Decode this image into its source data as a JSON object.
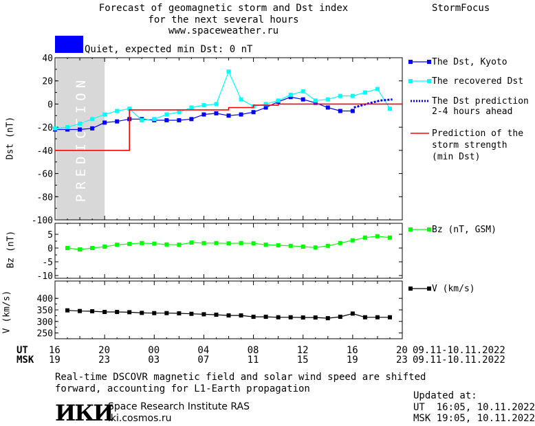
{
  "header": {
    "title_lines": [
      "Forecast of geomagnetic storm and Dst index",
      "for the next several hours",
      "www.spaceweather.ru"
    ],
    "brand": "StormFocus",
    "status_text": "Quiet, expected min Dst: 0 nT",
    "status_color": "#0000ff"
  },
  "legend": {
    "dst_kyoto": "The Dst, Kyoto",
    "dst_recovered": "The recovered Dst",
    "dst_prediction": [
      "The Dst prediction",
      "2-4 hours ahead"
    ],
    "storm_prediction": [
      "Prediction of the",
      "storm strength",
      "(min Dst)"
    ],
    "bz": "Bz (nT, GSM)",
    "v": "V (km/s)"
  },
  "prediction_label": "PREDICTION",
  "time_axis": {
    "ut_label": "UT",
    "msk_label": "MSK",
    "ut_ticks": [
      "16",
      "20",
      "00",
      "04",
      "08",
      "12",
      "16",
      "20"
    ],
    "msk_ticks": [
      "19",
      "23",
      "03",
      "07",
      "11",
      "15",
      "19",
      "23"
    ],
    "date_range_ut": "09.11-10.11.2022",
    "date_range_msk": "09.11-10.11.2022"
  },
  "footer": {
    "note_lines": [
      "Real-time DSCOVR magnetic field and solar wind speed are shifted",
      "forward, accounting for L1-Earth propagation"
    ],
    "logo_text": "ИКИ",
    "institute": "Space Research Institute RAS",
    "site": "iki.cosmos.ru",
    "updated_label": "Updated at:",
    "updated_ut": "UT  16:05, 10.11.2022",
    "updated_msk": "MSK 19:05, 10.11.2022"
  },
  "colors": {
    "dst_kyoto": "#0000ff",
    "dst_recovered": "#00ffff",
    "dst_prediction": "#0000ff",
    "storm_prediction": "#ff0000",
    "bz": "#00ff00",
    "v": "#000000",
    "prediction_zone": "#d8d8d8"
  },
  "chart_data": [
    {
      "type": "line",
      "ylabel": "Dst (nT)",
      "xlim": [
        16,
        44
      ],
      "ylim": [
        -100,
        40
      ],
      "yticks": [
        40,
        20,
        0,
        -20,
        -40,
        -60,
        -80,
        -100
      ],
      "prediction_zone": [
        16.1,
        20
      ],
      "series": [
        {
          "name": "The Dst, Kyoto",
          "x": [
            16,
            17,
            18,
            19,
            20,
            21,
            22,
            23,
            24,
            25,
            26,
            27,
            28,
            29,
            30,
            31,
            32,
            33,
            34,
            35,
            36,
            37,
            38,
            39,
            40
          ],
          "y": [
            -22,
            -22,
            -22,
            -21,
            -16,
            -15,
            -13,
            -13,
            -14,
            -14,
            -14,
            -13,
            -9,
            -8,
            -10,
            -9,
            -7,
            -3,
            2,
            6,
            4,
            1,
            -3,
            -6,
            -6
          ]
        },
        {
          "name": "The recovered Dst",
          "x": [
            16,
            17,
            18,
            19,
            20,
            21,
            22,
            23,
            24,
            25,
            26,
            27,
            28,
            29,
            30,
            31,
            32,
            33,
            34,
            35,
            36,
            37,
            38,
            39,
            40,
            41,
            42,
            43
          ],
          "y": [
            -21,
            -20,
            -17,
            -13,
            -9,
            -6,
            -4,
            -14,
            -13,
            -9,
            -7,
            -3,
            -1,
            0,
            28,
            4,
            -2,
            0,
            3,
            8,
            11,
            3,
            4,
            7,
            7,
            10,
            13,
            -4
          ]
        },
        {
          "name": "The Dst prediction 2-4 hours ahead",
          "x": [
            40.1,
            41.1,
            42.2,
            43.2
          ],
          "y": [
            -3,
            0,
            3,
            4
          ]
        },
        {
          "name": "Prediction of the storm strength (min Dst)",
          "x": [
            16,
            21,
            22,
            26,
            28,
            30,
            32,
            34,
            36,
            38,
            40,
            42,
            44
          ],
          "y": [
            -40,
            -40,
            -5,
            -5,
            -5,
            -3,
            -1,
            0,
            0,
            0,
            0,
            0,
            0
          ]
        }
      ]
    },
    {
      "type": "line",
      "ylabel": "Bz (nT)",
      "xlim": [
        16,
        44
      ],
      "ylim": [
        -11,
        9
      ],
      "yticks": [
        5,
        0,
        -5,
        -10
      ],
      "series": [
        {
          "name": "Bz (nT, GSM)",
          "x": [
            17,
            18,
            19,
            20,
            21,
            22,
            23,
            24,
            25,
            26,
            27,
            28,
            29,
            30,
            31,
            32,
            33,
            34,
            35,
            36,
            37,
            38,
            39,
            40,
            41,
            42,
            43
          ],
          "y": [
            0,
            -0.5,
            0,
            0.5,
            1.2,
            1.5,
            1.8,
            1.6,
            1.3,
            1.2,
            2,
            1.8,
            1.8,
            1.7,
            1.8,
            1.7,
            1.2,
            1,
            0.8,
            0.5,
            0.2,
            0.8,
            1.8,
            2.8,
            3.8,
            4.3,
            3.8
          ]
        }
      ]
    },
    {
      "type": "line",
      "ylabel": "V (km/s)",
      "xlim": [
        16,
        44
      ],
      "ylim": [
        225,
        475
      ],
      "yticks": [
        400,
        350,
        300,
        250
      ],
      "series": [
        {
          "name": "V (km/s)",
          "x": [
            17,
            18,
            19,
            20,
            21,
            22,
            23,
            24,
            25,
            26,
            27,
            28,
            29,
            30,
            31,
            32,
            33,
            34,
            35,
            36,
            37,
            38,
            39,
            40,
            41,
            42,
            43
          ],
          "y": [
            348,
            345,
            344,
            341,
            341,
            340,
            337,
            336,
            336,
            335,
            333,
            331,
            329,
            326,
            326,
            320,
            320,
            318,
            318,
            317,
            317,
            314,
            320,
            334,
            318,
            318,
            318
          ]
        }
      ]
    }
  ]
}
